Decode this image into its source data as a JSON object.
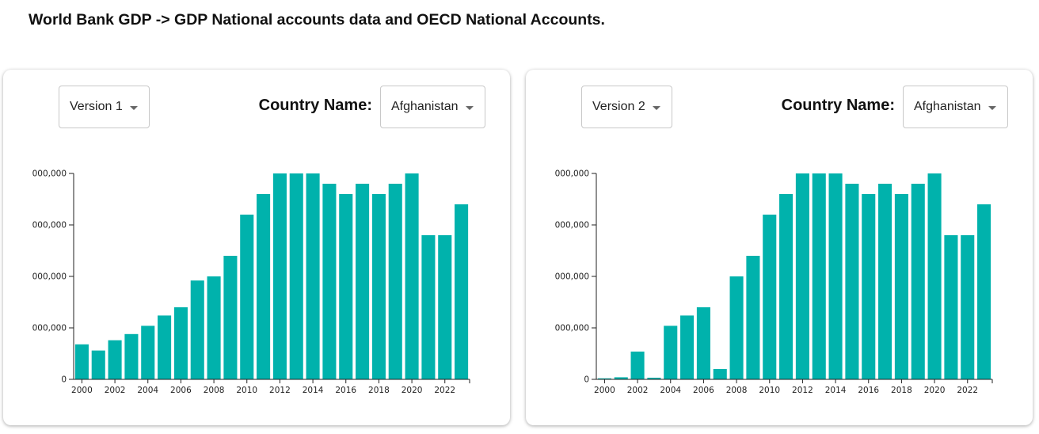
{
  "page": {
    "title": "World Bank GDP -> GDP National accounts data and OECD National Accounts."
  },
  "colors": {
    "bar": "#00b2ac",
    "axis": "#222222"
  },
  "panels": [
    {
      "version_label": "Version 1",
      "country_label": "Country Name:",
      "country_value": "Afghanistan"
    },
    {
      "version_label": "Version 2",
      "country_label": "Country Name:",
      "country_value": "Afghanistan"
    }
  ],
  "chart_data": [
    {
      "type": "bar",
      "title": "",
      "xlabel": "",
      "ylabel": "",
      "x": [
        2000,
        2001,
        2002,
        2003,
        2004,
        2005,
        2006,
        2007,
        2008,
        2009,
        2010,
        2011,
        2012,
        2013,
        2014,
        2015,
        2016,
        2017,
        2018,
        2019,
        2020,
        2021,
        2022,
        2023
      ],
      "x_tick_labels": [
        "2000",
        "2002",
        "2004",
        "2006",
        "2008",
        "2010",
        "2012",
        "2014",
        "2016",
        "2018",
        "2020",
        "2022"
      ],
      "y_tick_labels": [
        "0",
        "000,000",
        "000,000",
        "000,000",
        "000,000"
      ],
      "y_tick_fractions": [
        0,
        0.25,
        0.5,
        0.75,
        1.0
      ],
      "values": [
        0.17,
        0.14,
        0.19,
        0.22,
        0.26,
        0.31,
        0.35,
        0.48,
        0.5,
        0.6,
        0.8,
        0.9,
        1.0,
        1.0,
        1.0,
        0.95,
        0.9,
        0.95,
        0.9,
        0.95,
        1.0,
        0.7,
        0.7,
        0.85
      ],
      "value_units": "fraction of top y tick",
      "ylim": [
        0,
        1
      ]
    },
    {
      "type": "bar",
      "title": "",
      "xlabel": "",
      "ylabel": "",
      "x": [
        2000,
        2001,
        2002,
        2003,
        2004,
        2005,
        2006,
        2007,
        2008,
        2009,
        2010,
        2011,
        2012,
        2013,
        2014,
        2015,
        2016,
        2017,
        2018,
        2019,
        2020,
        2021,
        2022,
        2023
      ],
      "x_tick_labels": [
        "2000",
        "2002",
        "2004",
        "2006",
        "2008",
        "2010",
        "2012",
        "2014",
        "2016",
        "2018",
        "2020",
        "2022"
      ],
      "y_tick_labels": [
        "0",
        "000,000",
        "000,000",
        "000,000",
        "000,000"
      ],
      "y_tick_fractions": [
        0,
        0.25,
        0.5,
        0.75,
        1.0
      ],
      "values": [
        0.005,
        0.01,
        0.135,
        0.008,
        0.26,
        0.31,
        0.35,
        0.05,
        0.5,
        0.6,
        0.8,
        0.9,
        1.0,
        1.0,
        1.0,
        0.95,
        0.9,
        0.95,
        0.9,
        0.95,
        1.0,
        0.7,
        0.7,
        0.85
      ],
      "value_units": "fraction of top y tick",
      "ylim": [
        0,
        1
      ]
    }
  ]
}
